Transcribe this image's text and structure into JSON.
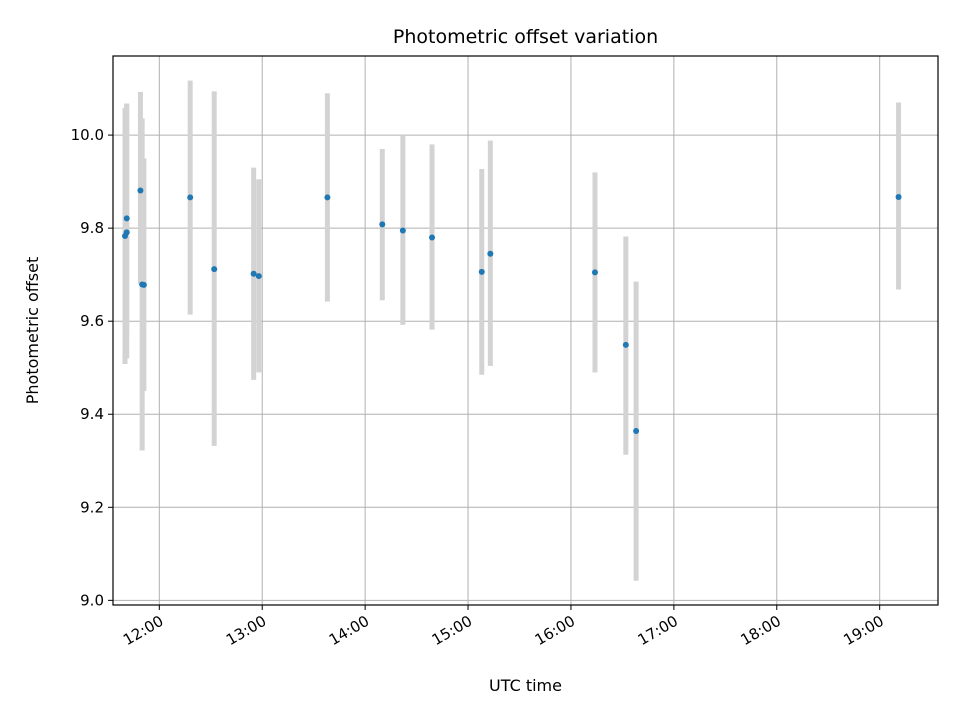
{
  "chart_data": {
    "type": "scatter",
    "title": "Photometric offset variation",
    "xlabel": "UTC time",
    "ylabel": "Photometric offset",
    "xlim": [
      "11:33",
      "19:34"
    ],
    "ylim": [
      8.99,
      10.17
    ],
    "x_ticks": [
      "12:00",
      "13:00",
      "14:00",
      "15:00",
      "16:00",
      "17:00",
      "18:00",
      "19:00"
    ],
    "y_ticks": [
      "9.0",
      "9.2",
      "9.4",
      "9.6",
      "9.8",
      "10.0"
    ],
    "grid": true,
    "points": [
      {
        "x": "11:40",
        "y": 9.783,
        "err_low": 9.508,
        "err_high": 10.058
      },
      {
        "x": "11:41",
        "y": 9.791,
        "err_low": 9.52,
        "err_high": 10.068
      },
      {
        "x": "11:41",
        "y": 9.821,
        "err_low": 9.58,
        "err_high": 10.066
      },
      {
        "x": "11:49",
        "y": 9.881,
        "err_low": 9.68,
        "err_high": 10.093
      },
      {
        "x": "11:50",
        "y": 9.679,
        "err_low": 9.322,
        "err_high": 10.036
      },
      {
        "x": "11:51",
        "y": 9.678,
        "err_low": 9.45,
        "err_high": 9.95
      },
      {
        "x": "12:18",
        "y": 9.866,
        "err_low": 9.614,
        "err_high": 10.117
      },
      {
        "x": "12:32",
        "y": 9.712,
        "err_low": 9.332,
        "err_high": 10.094
      },
      {
        "x": "12:55",
        "y": 9.702,
        "err_low": 9.474,
        "err_high": 9.93
      },
      {
        "x": "12:58",
        "y": 9.697,
        "err_low": 9.49,
        "err_high": 9.905
      },
      {
        "x": "13:38",
        "y": 9.866,
        "err_low": 9.642,
        "err_high": 10.09
      },
      {
        "x": "14:10",
        "y": 9.808,
        "err_low": 9.645,
        "err_high": 9.97
      },
      {
        "x": "14:22",
        "y": 9.795,
        "err_low": 9.592,
        "err_high": 9.998
      },
      {
        "x": "14:39",
        "y": 9.78,
        "err_low": 9.582,
        "err_high": 9.98
      },
      {
        "x": "15:08",
        "y": 9.706,
        "err_low": 9.485,
        "err_high": 9.927
      },
      {
        "x": "15:13",
        "y": 9.745,
        "err_low": 9.504,
        "err_high": 9.988
      },
      {
        "x": "16:14",
        "y": 9.705,
        "err_low": 9.49,
        "err_high": 9.92
      },
      {
        "x": "16:32",
        "y": 9.549,
        "err_low": 9.313,
        "err_high": 9.782
      },
      {
        "x": "16:38",
        "y": 9.364,
        "err_low": 9.042,
        "err_high": 9.685
      },
      {
        "x": "19:11",
        "y": 9.867,
        "err_low": 9.668,
        "err_high": 10.07
      }
    ],
    "colors": {
      "marker": "#1f77b4",
      "errorbar": "#d3d3d3",
      "grid": "#b0b0b0",
      "axes": "#000000"
    }
  }
}
